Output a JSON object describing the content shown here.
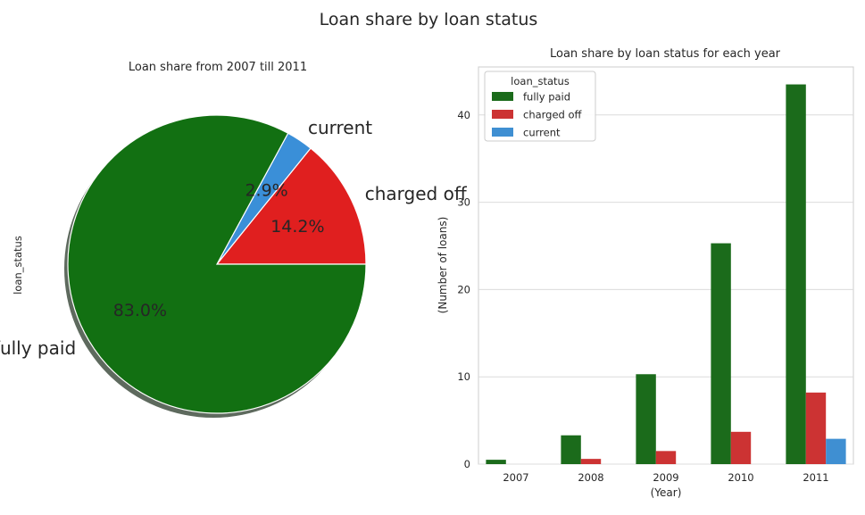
{
  "figure": {
    "title": "Loan share by loan status"
  },
  "chart_data": [
    {
      "type": "pie",
      "title": "Loan share from 2007 till 2011",
      "ylabel": "loan_status",
      "slices": [
        {
          "label": "fully paid",
          "value": 83.0,
          "pct_label": "83.0%",
          "color": "#127012"
        },
        {
          "label": "charged off",
          "value": 14.2,
          "pct_label": "14.2%",
          "color": "#e01f1f"
        },
        {
          "label": "current",
          "value": 2.9,
          "pct_label": "2.9%",
          "color": "#3a8fd8"
        }
      ],
      "shadow": true
    },
    {
      "type": "bar",
      "title": "Loan share by loan status for each year",
      "xlabel": "(Year)",
      "ylabel": "(Number of loans)",
      "categories": [
        "2007",
        "2008",
        "2009",
        "2010",
        "2011"
      ],
      "series": [
        {
          "name": "fully paid",
          "color": "#1b6b1b",
          "values": [
            0.5,
            3.3,
            10.3,
            25.3,
            43.5
          ]
        },
        {
          "name": "charged off",
          "color": "#cc3333",
          "values": [
            0.0,
            0.6,
            1.5,
            3.7,
            8.2
          ]
        },
        {
          "name": "current",
          "color": "#3f8fd2",
          "values": [
            0.0,
            0.0,
            0.0,
            0.0,
            2.9
          ]
        }
      ],
      "yticks": [
        0,
        10,
        20,
        30,
        40
      ],
      "ylim": [
        0,
        45.5
      ],
      "grid": true,
      "legend": {
        "title": "loan_status",
        "placement": "top-left"
      }
    }
  ]
}
